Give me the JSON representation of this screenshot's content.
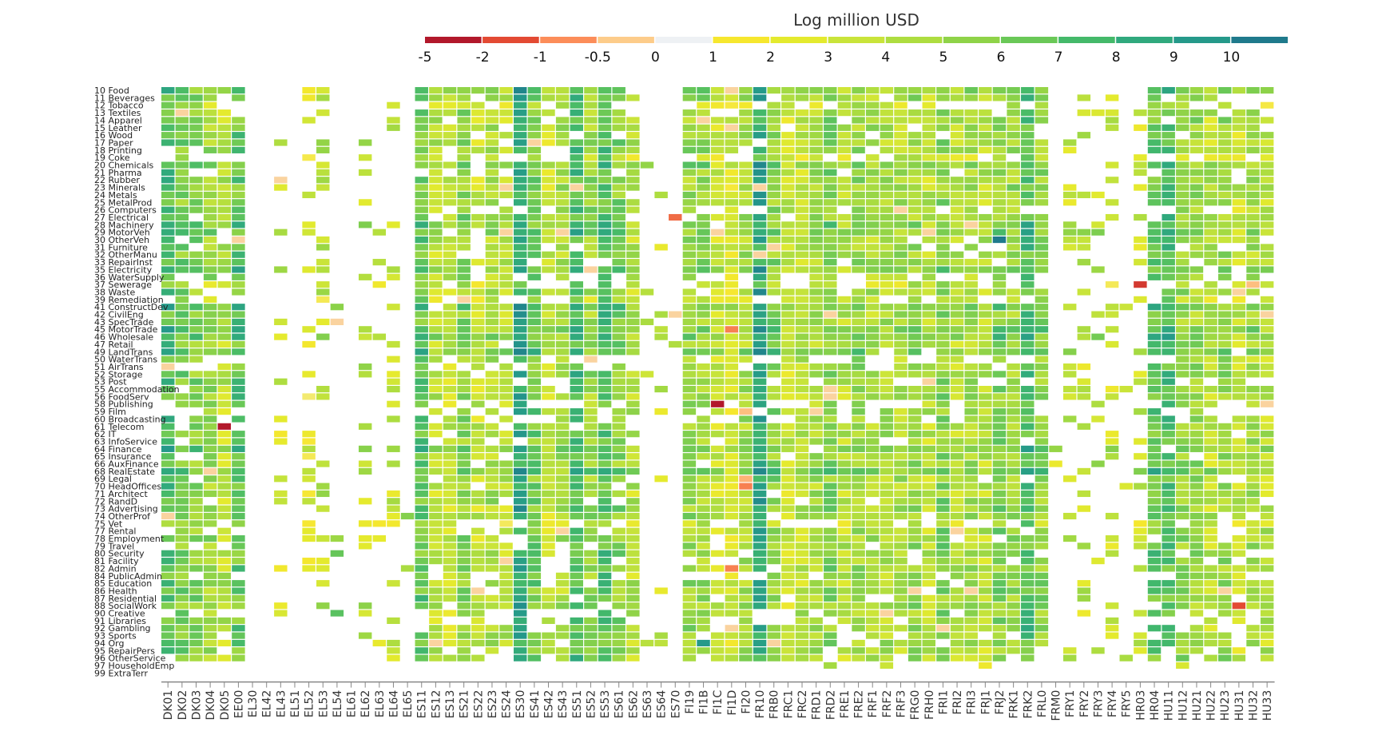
{
  "chart_data": {
    "type": "heatmap",
    "title": "Log million USD",
    "color_scale": {
      "ticks": [
        "-5",
        "-2",
        "-1",
        "-0.5",
        "0",
        "1",
        "2",
        "3",
        "4",
        "5",
        "6",
        "7",
        "8",
        "9",
        "10"
      ],
      "stops": [
        -5,
        -2,
        -1,
        -0.5,
        0,
        1,
        2,
        3,
        4,
        5,
        6,
        7,
        8,
        9,
        10
      ],
      "colors": [
        "#b2182b",
        "#e34a33",
        "#fc8d59",
        "#fdcc8a",
        "#eef1f4",
        "#f6e72e",
        "#e4ea2e",
        "#c9e43a",
        "#aedd40",
        "#8fd348",
        "#6ac857",
        "#44b96a",
        "#30a97d",
        "#25998a",
        "#1f7a8c"
      ]
    },
    "rows": [
      "10 Food",
      "11 Beverages",
      "12 Tobacco",
      "13 Textiles",
      "14 Apparel",
      "15 Leather",
      "16 Wood",
      "17 Paper",
      "18 Printing",
      "19 Coke",
      "20 Chemicals",
      "21 Pharma",
      "22 Rubber",
      "23 Minerals",
      "24 Metals",
      "25 MetalProd",
      "26 Computers",
      "27 Electrical",
      "28 Machinery",
      "29 MotorVeh",
      "30 OtherVeh",
      "31 Furniture",
      "32 OtherManu",
      "33 RepairInst",
      "35 Electricity",
      "36 WaterSupply",
      "37 Sewerage",
      "38 Waste",
      "39 Remediation",
      "41 ConstructDev",
      "42 CivilEng",
      "43 SpecTrade",
      "45 MotorTrade",
      "46 Wholesale",
      "47 Retail",
      "49 LandTrans",
      "50 WaterTrans",
      "51 AirTrans",
      "52 Storage",
      "53 Post",
      "55 Accommodation",
      "56 FoodServ",
      "58 Publishing",
      "59 Film",
      "60 Broadcasting",
      "61 Telecom",
      "62 IT",
      "63 InfoService",
      "64 Finance",
      "65 Insurance",
      "66 AuxFinance",
      "68 RealEstate",
      "69 Legal",
      "70 HeadOffices",
      "71 Architect",
      "72 RandD",
      "73 Advertising",
      "74 OtherProf",
      "75 Vet",
      "77 Rental",
      "78 Employment",
      "79 Travel",
      "80 Security",
      "81 Facility",
      "82 Admin",
      "84 PublicAdmin",
      "85 Education",
      "86 Health",
      "87 Residential",
      "88 SocialWork",
      "90 Creative",
      "91 Libraries",
      "92 Gambling",
      "93 Sports",
      "94 Org",
      "95 RepairPers",
      "96 OtherService",
      "97 HouseholdEmp",
      "99 ExtraTerr"
    ],
    "columns": [
      "DK01",
      "DK02",
      "DK03",
      "DK04",
      "DK05",
      "EE00",
      "EL30",
      "EL42",
      "EL43",
      "EL51",
      "EL52",
      "EL53",
      "EL54",
      "EL61",
      "EL62",
      "EL63",
      "EL64",
      "EL65",
      "ES11",
      "ES12",
      "ES13",
      "ES21",
      "ES22",
      "ES23",
      "ES24",
      "ES30",
      "ES41",
      "ES42",
      "ES43",
      "ES51",
      "ES52",
      "ES53",
      "ES61",
      "ES62",
      "ES63",
      "ES64",
      "ES70",
      "FI19",
      "FI1B",
      "FI1C",
      "FI1D",
      "FI20",
      "FR10",
      "FRB0",
      "FRC1",
      "FRC2",
      "FRD1",
      "FRD2",
      "FRE1",
      "FRE2",
      "FRF1",
      "FRF2",
      "FRF3",
      "FRG0",
      "FRH0",
      "FRI1",
      "FRI2",
      "FRI3",
      "FRJ1",
      "FRJ2",
      "FRK1",
      "FRK2",
      "FRL0",
      "FRM0",
      "FRY1",
      "FRY2",
      "FRY3",
      "FRY4",
      "FRY5",
      "HR03",
      "HR04",
      "HU11",
      "HU12",
      "HU21",
      "HU22",
      "HU23",
      "HU31",
      "HU32",
      "HU33"
    ],
    "column_density": [
      0.97,
      0.95,
      0.85,
      0.9,
      0.75,
      0.99,
      0.01,
      0.0,
      0.18,
      0.0,
      0.35,
      0.35,
      0.04,
      0.0,
      0.28,
      0.1,
      0.36,
      0.05,
      0.9,
      0.82,
      0.8,
      0.98,
      0.78,
      0.88,
      0.8,
      0.99,
      0.95,
      0.85,
      0.85,
      0.97,
      0.95,
      0.97,
      0.88,
      0.82,
      0.05,
      0.08,
      0.03,
      0.95,
      0.95,
      0.92,
      0.97,
      0.95,
      1.0,
      0.98,
      0.85,
      0.95,
      0.95,
      0.98,
      0.88,
      0.92,
      0.92,
      0.9,
      0.92,
      0.9,
      0.92,
      0.95,
      0.88,
      0.9,
      0.88,
      0.88,
      0.95,
      0.98,
      0.97,
      0.05,
      0.2,
      0.35,
      0.15,
      0.35,
      0.05,
      0.35,
      0.95,
      0.95,
      0.9,
      0.92,
      0.92,
      0.9,
      0.8,
      0.9,
      0.85
    ],
    "column_level": [
      6.5,
      5.3,
      5.0,
      4.5,
      3.5,
      6.0,
      5.0,
      5.0,
      2.5,
      5.0,
      2.0,
      3.5,
      5.0,
      5.0,
      3.5,
      3.0,
      3.0,
      5.0,
      6.0,
      3.5,
      3.0,
      5.0,
      3.0,
      4.0,
      3.5,
      8.0,
      5.5,
      3.0,
      4.0,
      7.0,
      4.5,
      6.5,
      5.0,
      3.5,
      3.0,
      3.0,
      3.0,
      4.5,
      4.5,
      3.0,
      2.5,
      4.0,
      8.0,
      5.0,
      3.0,
      3.5,
      4.0,
      5.0,
      3.5,
      4.5,
      4.0,
      4.0,
      4.0,
      4.5,
      3.5,
      5.0,
      3.5,
      4.0,
      3.5,
      5.0,
      4.5,
      6.5,
      5.0,
      3.0,
      3.0,
      3.0,
      3.5,
      3.0,
      3.0,
      3.0,
      6.0,
      6.5,
      4.5,
      4.5,
      3.5,
      4.5,
      3.0,
      4.0,
      3.5
    ],
    "special_cells": [
      {
        "row": "61 Telecom",
        "col": "DK05",
        "value": -5
      },
      {
        "row": "58 Publishing",
        "col": "FI1C",
        "value": -5
      },
      {
        "row": "37 Sewerage",
        "col": "HR03",
        "value": -3
      },
      {
        "row": "88 SocialWork",
        "col": "HU31",
        "value": -2
      },
      {
        "row": "27 Electrical",
        "col": "ES70",
        "value": -1.5
      },
      {
        "row": "45 MotorTrade",
        "col": "FI1D",
        "value": -1.2
      },
      {
        "row": "70 HeadOffices",
        "col": "FI20",
        "value": -1.2
      },
      {
        "row": "82 Admin",
        "col": "FI1D",
        "value": -1.2
      },
      {
        "row": "30 OtherVeh",
        "col": "FRJ2",
        "value": 10
      },
      {
        "row": "64 Finance",
        "col": "DK01",
        "value": 9
      },
      {
        "row": "35 Electricity",
        "col": "EE00",
        "value": 8.5
      },
      {
        "row": "94 Org",
        "col": "FI1B",
        "value": 9
      },
      {
        "row": "69 Legal",
        "col": "FI20",
        "value": -0.7
      },
      {
        "row": "59 Film",
        "col": "FI20",
        "value": -0.6
      },
      {
        "row": "37 Sewerage",
        "col": "HU32",
        "value": -0.6
      }
    ]
  }
}
